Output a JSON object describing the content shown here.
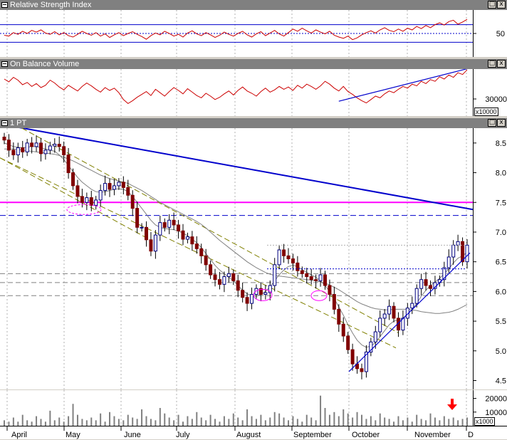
{
  "panes": {
    "rsi": {
      "title": "Relative Strength Index",
      "ticks": [
        "50"
      ]
    },
    "obv": {
      "title": "On Balance Volume",
      "ticks": [
        "30000"
      ],
      "unit": "x10000"
    },
    "price": {
      "title": "1 PT",
      "ticks": [
        "8.5",
        "8.0",
        "7.5",
        "7.0",
        "6.5",
        "6.0",
        "5.5",
        "5.0",
        "4.5"
      ]
    },
    "volume": {
      "ticks": [
        "20000",
        "10000"
      ],
      "unit": "x1000"
    }
  },
  "window_buttons": {
    "restore": "□",
    "close": "x"
  },
  "months": [
    "April",
    "May",
    "June",
    "July",
    "August",
    "September",
    "October",
    "November",
    "D"
  ],
  "chart_data": [
    {
      "type": "line",
      "title": "Relative Strength Index",
      "ylim": [
        0,
        100
      ],
      "reference_lines": [
        70,
        50,
        30
      ],
      "series": [
        {
          "name": "RSI",
          "color": "#cc0000",
          "values": [
            46,
            44,
            52,
            48,
            55,
            50,
            57,
            53,
            58,
            51,
            48,
            54,
            47,
            52,
            45,
            42,
            48,
            55,
            50,
            46,
            52,
            44,
            49,
            41,
            47,
            52,
            45,
            50,
            54,
            48,
            43,
            37,
            45,
            51,
            47,
            55,
            50,
            44,
            48,
            42,
            51,
            56,
            49,
            45,
            52,
            47,
            41,
            46,
            53,
            48,
            44,
            50,
            55,
            47,
            42,
            49,
            54,
            45,
            51,
            57,
            49,
            44,
            52,
            60,
            55,
            62,
            56,
            51,
            58,
            53,
            49,
            55,
            46,
            42,
            39,
            44,
            36,
            40,
            47,
            52,
            56,
            51,
            58,
            63,
            57,
            54,
            60,
            55,
            62,
            58,
            66,
            61,
            68,
            63,
            70,
            74,
            69,
            77,
            80,
            71,
            76,
            82
          ]
        }
      ]
    },
    {
      "type": "line",
      "title": "On Balance Volume",
      "series": [
        {
          "name": "OBV",
          "color": "#cc0000",
          "values": [
            60,
            55,
            63,
            58,
            50,
            54,
            47,
            52,
            45,
            49,
            58,
            53,
            46,
            41,
            49,
            44,
            39,
            47,
            53,
            48,
            42,
            37,
            45,
            40,
            44,
            36,
            24,
            17,
            22,
            28,
            33,
            38,
            31,
            42,
            36,
            30,
            38,
            45,
            40,
            34,
            43,
            37,
            31,
            27,
            35,
            30,
            24,
            28,
            34,
            39,
            32,
            40,
            46,
            39,
            35,
            30,
            38,
            44,
            37,
            41,
            47,
            42,
            46,
            40,
            49,
            44,
            51,
            47,
            42,
            48,
            56,
            51,
            44,
            39,
            47,
            38,
            33,
            27,
            22,
            18,
            24,
            30,
            27,
            34,
            39,
            36,
            42,
            47,
            44,
            51,
            48,
            56,
            52,
            59,
            56,
            64,
            60,
            67,
            63,
            71,
            68,
            76
          ]
        }
      ],
      "trendline": [
        [
          73,
          21
        ],
        [
          101,
          78
        ]
      ]
    },
    {
      "type": "candlestick",
      "title": "1 PT",
      "ylim": [
        4.35,
        8.75
      ],
      "yticks": [
        4.5,
        5.0,
        5.5,
        6.0,
        6.5,
        7.0,
        7.5,
        8.0,
        8.5
      ],
      "categories": [
        "April",
        "May",
        "June",
        "July",
        "August",
        "September",
        "October",
        "November",
        "D"
      ],
      "close": [
        8.55,
        8.38,
        8.3,
        8.42,
        8.35,
        8.5,
        8.44,
        8.5,
        8.32,
        8.38,
        8.45,
        8.48,
        8.44,
        8.3,
        8.0,
        7.78,
        7.6,
        7.5,
        7.58,
        7.45,
        7.54,
        7.7,
        7.82,
        7.72,
        7.78,
        7.84,
        7.75,
        7.62,
        7.4,
        7.08,
        7.08,
        6.87,
        6.68,
        6.95,
        7.16,
        7.08,
        7.2,
        7.12,
        7.02,
        6.88,
        6.92,
        6.8,
        6.72,
        6.6,
        6.45,
        6.28,
        6.2,
        6.12,
        6.25,
        6.3,
        6.18,
        6.02,
        5.9,
        5.8,
        5.95,
        6.05,
        5.95,
        5.98,
        6.1,
        6.45,
        6.7,
        6.6,
        6.55,
        6.48,
        6.35,
        6.3,
        6.25,
        6.2,
        6.18,
        6.28,
        6.1,
        5.95,
        5.7,
        5.45,
        5.25,
        5.02,
        4.78,
        4.7,
        4.65,
        4.98,
        5.15,
        5.32,
        5.55,
        5.62,
        5.75,
        5.55,
        5.35,
        5.55,
        5.72,
        5.8,
        6.05,
        6.2,
        6.1,
        6.05,
        6.15,
        6.2,
        6.4,
        6.58,
        6.78,
        6.84,
        6.5,
        6.78
      ],
      "overlays": [
        {
          "name": "Moving average (fast)",
          "color": "#808080",
          "values": [
            8.5,
            8.47,
            8.44,
            8.43,
            8.42,
            8.43,
            8.44,
            8.44,
            8.42,
            8.4,
            8.38,
            8.36,
            8.3,
            8.22,
            8.12,
            8.02,
            7.92,
            7.84,
            7.78,
            7.72,
            7.68,
            7.67,
            7.68,
            7.7,
            7.72,
            7.73,
            7.72,
            7.68,
            7.6,
            7.5,
            7.4,
            7.3,
            7.2,
            7.12,
            7.08,
            7.06,
            7.05,
            7.04,
            7.02,
            6.98,
            6.94,
            6.88,
            6.82,
            6.74,
            6.64,
            6.54,
            6.44,
            6.36,
            6.3,
            6.24,
            6.18,
            6.1,
            6.02,
            5.96,
            5.93,
            5.92,
            5.95,
            6.0,
            6.08,
            6.18,
            6.28,
            6.36,
            6.42,
            6.44,
            6.42,
            6.37,
            6.32,
            6.28,
            6.24,
            6.18,
            6.1,
            6.0,
            5.88,
            5.74,
            5.6,
            5.44,
            5.3,
            5.18,
            5.1,
            5.06,
            5.08,
            5.14,
            5.24,
            5.34,
            5.44,
            5.5,
            5.52,
            5.55,
            5.62,
            5.7,
            5.8,
            5.92,
            6.02,
            6.1,
            6.16,
            6.22,
            6.3,
            6.38,
            6.48,
            6.56,
            6.6,
            6.66
          ]
        },
        {
          "name": "Moving average (slow)",
          "color": "#808080",
          "values": [
            8.4,
            8.4,
            8.4,
            8.39,
            8.38,
            8.37,
            8.36,
            8.35,
            8.34,
            8.33,
            8.32,
            8.31,
            8.29,
            8.26,
            8.23,
            8.2,
            8.16,
            8.12,
            8.08,
            8.04,
            8.0,
            7.96,
            7.93,
            7.9,
            7.88,
            7.86,
            7.84,
            7.82,
            7.78,
            7.74,
            7.7,
            7.65,
            7.6,
            7.55,
            7.5,
            7.46,
            7.42,
            7.38,
            7.34,
            7.3,
            7.26,
            7.22,
            7.18,
            7.13,
            7.07,
            7.0,
            6.93,
            6.86,
            6.8,
            6.74,
            6.68,
            6.62,
            6.56,
            6.5,
            6.45,
            6.4,
            6.36,
            6.32,
            6.29,
            6.27,
            6.26,
            6.25,
            6.24,
            6.23,
            6.22,
            6.21,
            6.2,
            6.19,
            6.18,
            6.16,
            6.14,
            6.11,
            6.07,
            6.03,
            5.98,
            5.93,
            5.88,
            5.83,
            5.79,
            5.76,
            5.73,
            5.71,
            5.7,
            5.69,
            5.69,
            5.7,
            5.7,
            5.7,
            5.7,
            5.69,
            5.68,
            5.66,
            5.65,
            5.64,
            5.63,
            5.63,
            5.64,
            5.65,
            5.67,
            5.7,
            5.74,
            5.78
          ]
        }
      ],
      "horizontal_lines": [
        {
          "value": 7.5,
          "color": "#ff00ff",
          "style": "solid"
        },
        {
          "value": 7.28,
          "color": "#0000cc",
          "style": "dashed"
        },
        {
          "value": 6.3,
          "color": "#808080",
          "style": "dashed"
        },
        {
          "value": 6.15,
          "color": "#808080",
          "style": "dashed"
        },
        {
          "value": 5.93,
          "color": "#808080",
          "style": "dashed"
        }
      ]
    },
    {
      "type": "bar",
      "title": "",
      "ylim": [
        0,
        26
      ],
      "yticks": [
        10,
        20
      ],
      "values": [
        4,
        3,
        6,
        3,
        8,
        4,
        3,
        7,
        5,
        3,
        11,
        4,
        6,
        3,
        7,
        16,
        8,
        5,
        4,
        6,
        4,
        9,
        3,
        10,
        7,
        5,
        4,
        8,
        6,
        5,
        12,
        7,
        5,
        4,
        13,
        9,
        6,
        4,
        8,
        3,
        7,
        5,
        10,
        6,
        4,
        8,
        5,
        3,
        7,
        5,
        9,
        6,
        4,
        12,
        7,
        5,
        8,
        4,
        6,
        10,
        9,
        6,
        4,
        7,
        5,
        3,
        8,
        6,
        4,
        22,
        13,
        8,
        10,
        7,
        12,
        9,
        6,
        10,
        8,
        5,
        7,
        4,
        9,
        6,
        5,
        3,
        7,
        4,
        6,
        3,
        8,
        5,
        4,
        9,
        6,
        4,
        7,
        5,
        6,
        4,
        5,
        6
      ]
    }
  ]
}
